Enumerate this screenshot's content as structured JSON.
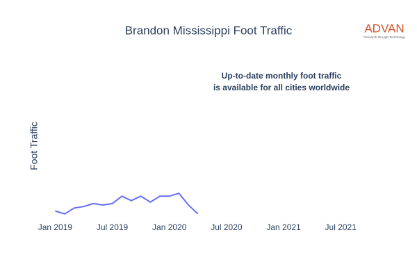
{
  "chart_data": {
    "type": "line",
    "title": "Brandon Mississippi Foot Traffic",
    "y_label": "Foot Traffic",
    "annotation": [
      "Up-to-date monthly foot traffic",
      "is available for all cities worldwide"
    ],
    "logo": {
      "name": "ADVAN",
      "tagline": "Research through Technology"
    },
    "x": [
      "2019-01",
      "2019-02",
      "2019-03",
      "2019-04",
      "2019-05",
      "2019-06",
      "2019-07",
      "2019-08",
      "2019-09",
      "2019-10",
      "2019-11",
      "2019-12",
      "2020-01",
      "2020-02",
      "2020-03",
      "2020-04"
    ],
    "series": [
      {
        "name": "Foot Traffic",
        "color": "#636efa",
        "values": [
          4,
          2,
          6,
          7,
          9,
          8,
          9,
          14,
          11,
          14,
          10,
          14,
          14,
          16,
          8,
          2
        ]
      }
    ],
    "xlim": [
      "2018-11",
      "2021-11"
    ],
    "ylim": [
      0,
      100
    ],
    "xticks": [
      {
        "value": "2019-01",
        "label": "Jan 2019"
      },
      {
        "value": "2019-07",
        "label": "Jul 2019"
      },
      {
        "value": "2020-01",
        "label": "Jan 2020"
      },
      {
        "value": "2020-07",
        "label": "Jul 2020"
      },
      {
        "value": "2021-01",
        "label": "Jan 2021"
      },
      {
        "value": "2021-07",
        "label": "Jul 2021"
      }
    ],
    "grid": false
  }
}
